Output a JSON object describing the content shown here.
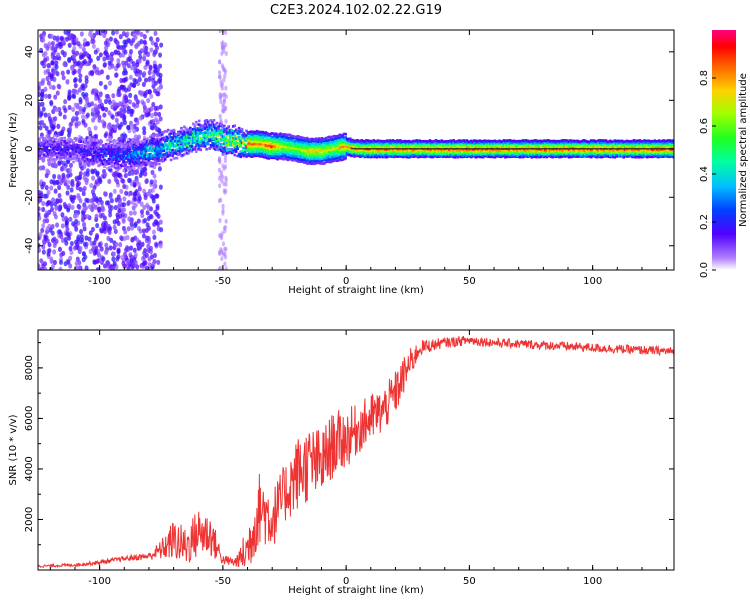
{
  "title": "C2E3.2024.102.02.22.G19",
  "chart_data": [
    {
      "type": "heatmap",
      "xlabel": "Height of straight line (km)",
      "ylabel": "Frequency (Hz)",
      "xlim": [
        -125,
        133
      ],
      "ylim": [
        -50,
        49
      ],
      "xticks": [
        -100,
        -50,
        0,
        50,
        100
      ],
      "yticks": [
        -40,
        -20,
        0,
        20,
        40
      ],
      "colorbar": {
        "label": "Normalized spectral amplitude",
        "range": [
          0,
          1
        ],
        "ticks": [
          "0.0",
          "0.2",
          "0.4",
          "0.6",
          "0.8"
        ]
      },
      "ridge": {
        "x": [
          -125,
          -110,
          -100,
          -90,
          -80,
          -70,
          -65,
          -60,
          -55,
          -50,
          -45,
          -40,
          -35,
          -30,
          -25,
          -20,
          -15,
          -10,
          -5,
          0,
          5,
          50,
          100,
          133
        ],
        "frequency_hz": [
          0,
          0,
          -2,
          -3,
          -1,
          2,
          3,
          5,
          6,
          4,
          3,
          2,
          2,
          1,
          1,
          0,
          -1,
          -1,
          0,
          1,
          0,
          0,
          0,
          0
        ],
        "amplitude": [
          0.2,
          0.2,
          0.25,
          0.3,
          0.45,
          0.55,
          0.6,
          0.6,
          0.6,
          0.65,
          0.8,
          0.85,
          0.85,
          0.9,
          0.7,
          0.65,
          0.75,
          0.75,
          0.7,
          0.85,
          0.9,
          0.95,
          0.95,
          0.95
        ]
      },
      "grid": false
    },
    {
      "type": "line",
      "xlabel": "Height of straight line (km)",
      "ylabel": "SNR (10 * v/v)",
      "xlim": [
        -125,
        133
      ],
      "ylim": [
        0,
        9500
      ],
      "xticks": [
        -100,
        -50,
        0,
        50,
        100
      ],
      "yticks": [
        2000,
        4000,
        6000,
        8000
      ],
      "color": "#ee3333",
      "series": [
        {
          "x": [
            -125,
            -110,
            -100,
            -90,
            -80,
            -75,
            -70,
            -65,
            -60,
            -55,
            -50,
            -45,
            -40,
            -35,
            -30,
            -25,
            -20,
            -15,
            -10,
            -5,
            0,
            5,
            10,
            15,
            20,
            25,
            30,
            40,
            50,
            60,
            70,
            80,
            90,
            100,
            110,
            120,
            133
          ],
          "y": [
            150,
            200,
            300,
            450,
            550,
            800,
            1200,
            900,
            1500,
            1400,
            400,
            300,
            800,
            2500,
            2000,
            3000,
            3800,
            4200,
            4200,
            5000,
            5200,
            5600,
            6000,
            6300,
            7000,
            8000,
            8800,
            9000,
            9100,
            9000,
            8950,
            8900,
            8850,
            8800,
            8750,
            8700,
            8650
          ],
          "noise": [
            50,
            60,
            80,
            100,
            150,
            400,
            800,
            800,
            1000,
            900,
            200,
            200,
            1000,
            1500,
            1200,
            1200,
            1500,
            1500,
            1400,
            1300,
            1200,
            1000,
            1000,
            900,
            900,
            700,
            300,
            200,
            200,
            180,
            180,
            180,
            180,
            180,
            180,
            180,
            180
          ]
        }
      ],
      "grid": false
    }
  ]
}
